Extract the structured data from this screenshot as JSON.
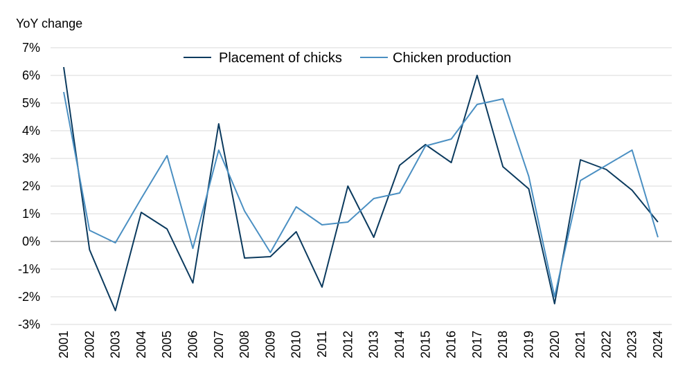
{
  "chart_data": {
    "type": "line",
    "ylabel": "YoY change",
    "xlabel": "",
    "ylim": [
      -3,
      7
    ],
    "y_ticks": [
      "7%",
      "6%",
      "5%",
      "4%",
      "3%",
      "2%",
      "1%",
      "0%",
      "-1%",
      "-2%",
      "-3%"
    ],
    "x": [
      "2001",
      "2002",
      "2003",
      "2004",
      "2005",
      "2006",
      "2007",
      "2008",
      "2009",
      "2010",
      "2011",
      "2012",
      "2013",
      "2014",
      "2015",
      "2016",
      "2017",
      "2018",
      "2019",
      "2020",
      "2021",
      "2022",
      "2023",
      "2024"
    ],
    "grid": "horizontal",
    "legend_position": "top",
    "series": [
      {
        "name": "Placement of chicks",
        "color": "#0b3a5e",
        "values": [
          6.3,
          -0.3,
          -2.5,
          1.05,
          0.45,
          -1.5,
          4.25,
          -0.6,
          -0.55,
          0.35,
          -1.65,
          2.0,
          0.15,
          2.75,
          3.5,
          2.85,
          6.0,
          2.7,
          1.9,
          -2.25,
          2.95,
          2.6,
          1.85,
          0.7
        ]
      },
      {
        "name": "Chicken production",
        "color": "#4a8fc2",
        "values": [
          5.4,
          0.4,
          -0.05,
          1.55,
          3.1,
          -0.25,
          3.3,
          1.1,
          -0.4,
          1.25,
          0.6,
          0.7,
          1.55,
          1.75,
          3.45,
          3.7,
          4.95,
          5.15,
          2.35,
          -2.0,
          2.2,
          2.75,
          3.3,
          0.15
        ]
      }
    ]
  }
}
